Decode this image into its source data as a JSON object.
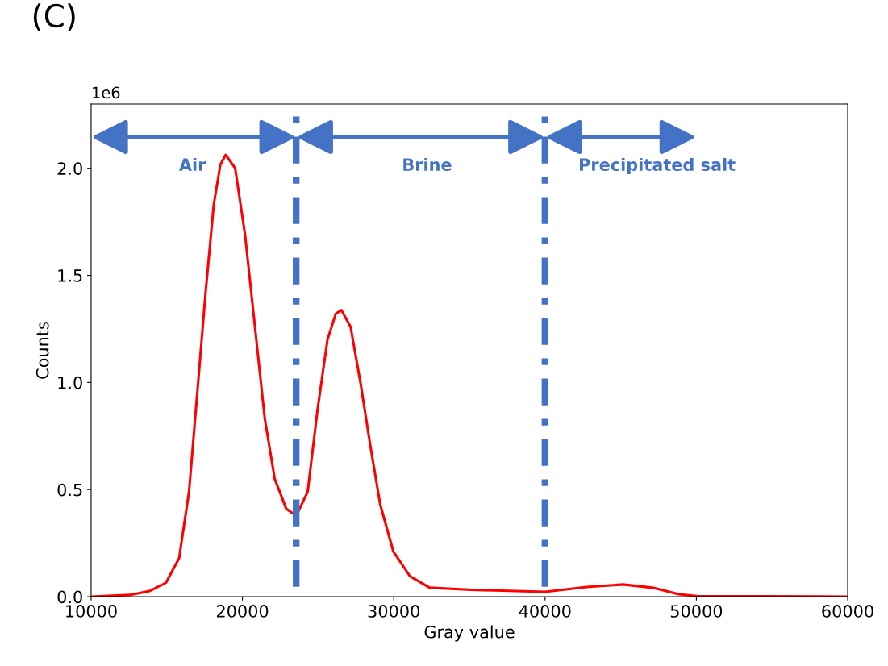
{
  "chart_data": {
    "type": "line",
    "xlabel": "Gray value",
    "ylabel": "Counts",
    "x": [
      10000,
      12549,
      13856,
      14946,
      15817,
      16471,
      17015,
      17560,
      18105,
      18540,
      18897,
      19521,
      20174,
      20828,
      21481,
      22135,
      22898,
      23551,
      24314,
      24967,
      25621,
      26166,
      26536,
      27146,
      27800,
      28453,
      29107,
      29978,
      31068,
      32375,
      35425,
      36645,
      40000,
      42745,
      45142,
      47102,
      48845,
      50000,
      60000
    ],
    "series": [
      {
        "color": "#ff0000",
        "values": [
          0,
          0.008,
          0.026,
          0.065,
          0.18,
          0.49,
          0.95,
          1.415,
          1.83,
          2.017,
          2.063,
          2.0,
          1.69,
          1.26,
          0.83,
          0.55,
          0.41,
          0.377,
          0.49,
          0.875,
          1.2,
          1.32,
          1.338,
          1.26,
          1.0,
          0.705,
          0.43,
          0.21,
          0.096,
          0.042,
          0.031,
          0.029,
          0.023,
          0.045,
          0.057,
          0.042,
          0.011,
          0.003,
          0
        ]
      }
    ],
    "xlim": [
      10000,
      60000
    ],
    "xticks": [
      10000,
      20000,
      30000,
      40000,
      50000,
      60000
    ],
    "ylim": [
      0,
      2.3
    ],
    "yticks": [
      {
        "value": 0,
        "label": "0.0"
      },
      {
        "value": 0.5,
        "label": "0.5"
      },
      {
        "value": 1,
        "label": "1.0"
      },
      {
        "value": 1.5,
        "label": "1.5"
      },
      {
        "value": 2,
        "label": "2.0"
      }
    ],
    "ref_lines": [
      {
        "axis": "x",
        "value": 23551,
        "color": "#4472c4",
        "line_style": "dashed"
      },
      {
        "axis": "x",
        "value": 40000,
        "color": "#4472c4",
        "line_style": "dashed"
      }
    ],
    "annotations": [
      "(C)",
      "1e6",
      "Air",
      "Brine",
      "Precipitated salt"
    ],
    "grid": false,
    "legend": false,
    "marker": "none",
    "line_style": "solid"
  }
}
